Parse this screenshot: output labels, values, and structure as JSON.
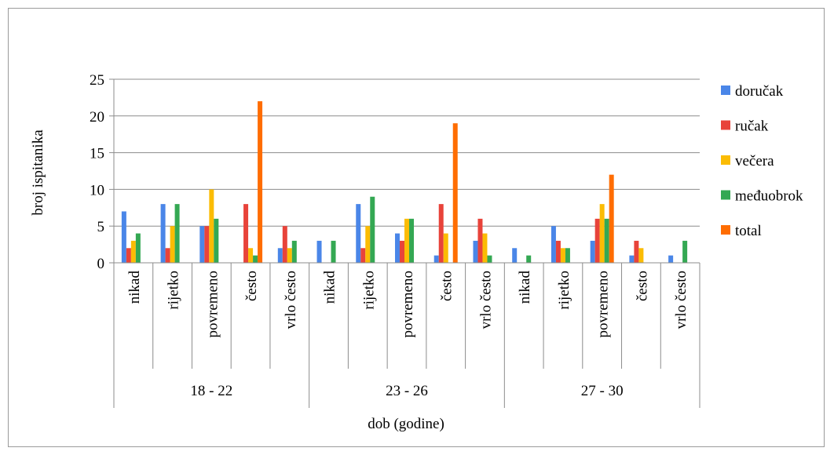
{
  "chart_data": {
    "type": "bar",
    "title": "",
    "xlabel": "dob (godine)",
    "ylabel": "broj ispitanika",
    "ylim": [
      0,
      25
    ],
    "yticks": [
      "0",
      "5",
      "10",
      "15",
      "20",
      "25"
    ],
    "grid": true,
    "legend_position": "right",
    "groups": [
      "18 - 22",
      "23 - 26",
      "27 - 30"
    ],
    "categories": [
      "nikad",
      "rijetko",
      "povremeno",
      "često",
      "vrlo često",
      "nikad",
      "rijetko",
      "povremeno",
      "često",
      "vrlo često",
      "nikad",
      "rijetko",
      "povremeno",
      "često",
      "vrlo često"
    ],
    "series": [
      {
        "name": "doručak",
        "color": "#4a86e8",
        "values": [
          7,
          8,
          5,
          0,
          2,
          3,
          8,
          4,
          1,
          3,
          2,
          5,
          3,
          1,
          1
        ]
      },
      {
        "name": "ručak",
        "color": "#e8433a",
        "values": [
          2,
          2,
          5,
          8,
          5,
          0,
          2,
          3,
          8,
          6,
          0,
          3,
          6,
          3,
          0
        ]
      },
      {
        "name": "večera",
        "color": "#fbbc04",
        "values": [
          3,
          5,
          10,
          2,
          2,
          0,
          5,
          6,
          4,
          4,
          0,
          2,
          8,
          2,
          0
        ]
      },
      {
        "name": "međuobrok",
        "color": "#34a853",
        "values": [
          4,
          8,
          6,
          1,
          3,
          3,
          9,
          6,
          0,
          1,
          1,
          2,
          6,
          0,
          3
        ]
      },
      {
        "name": "total",
        "color": "#ff6d01",
        "values": [
          0,
          0,
          0,
          22,
          0,
          0,
          0,
          0,
          19,
          0,
          0,
          0,
          12,
          0,
          0
        ]
      }
    ]
  }
}
